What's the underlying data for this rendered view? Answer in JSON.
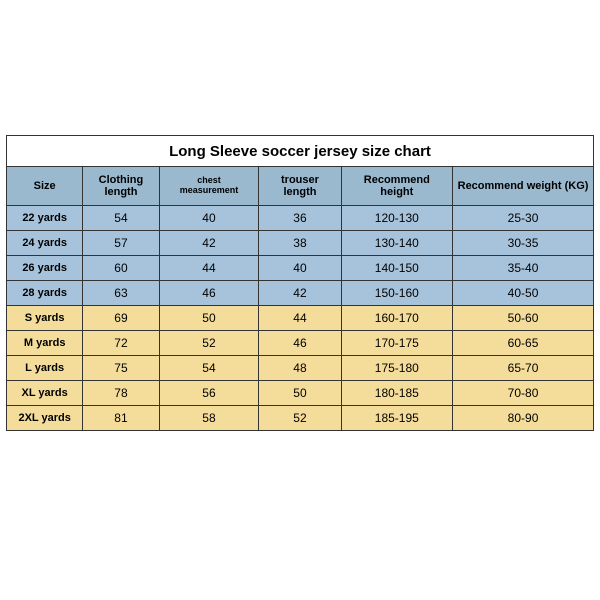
{
  "title": "Long Sleeve soccer jersey size chart",
  "columns": [
    "Size",
    "Clothing length",
    "chest measurement",
    "trouser length",
    "Recommend height",
    "Recommend weight (KG)"
  ],
  "column_small_font": [
    false,
    false,
    true,
    false,
    false,
    false
  ],
  "row_bands": [
    "blue",
    "blue",
    "blue",
    "blue",
    "yellow",
    "yellow",
    "yellow",
    "yellow",
    "yellow"
  ],
  "rows": [
    [
      "22 yards",
      "54",
      "40",
      "36",
      "120-130",
      "25-30"
    ],
    [
      "24 yards",
      "57",
      "42",
      "38",
      "130-140",
      "30-35"
    ],
    [
      "26 yards",
      "60",
      "44",
      "40",
      "140-150",
      "35-40"
    ],
    [
      "28 yards",
      "63",
      "46",
      "42",
      "150-160",
      "40-50"
    ],
    [
      "S yards",
      "69",
      "50",
      "44",
      "160-170",
      "50-60"
    ],
    [
      "M yards",
      "72",
      "52",
      "46",
      "170-175",
      "60-65"
    ],
    [
      "L yards",
      "75",
      "54",
      "48",
      "175-180",
      "65-70"
    ],
    [
      "XL yards",
      "78",
      "56",
      "50",
      "180-185",
      "70-80"
    ],
    [
      "2XL yards",
      "81",
      "58",
      "52",
      "185-195",
      "80-90"
    ]
  ],
  "colors": {
    "header_bg": "#9ab9cf",
    "blue_bg": "#a7c3db",
    "yellow_bg": "#f4dc9a",
    "border": "#333333",
    "page_bg": "#ffffff"
  }
}
